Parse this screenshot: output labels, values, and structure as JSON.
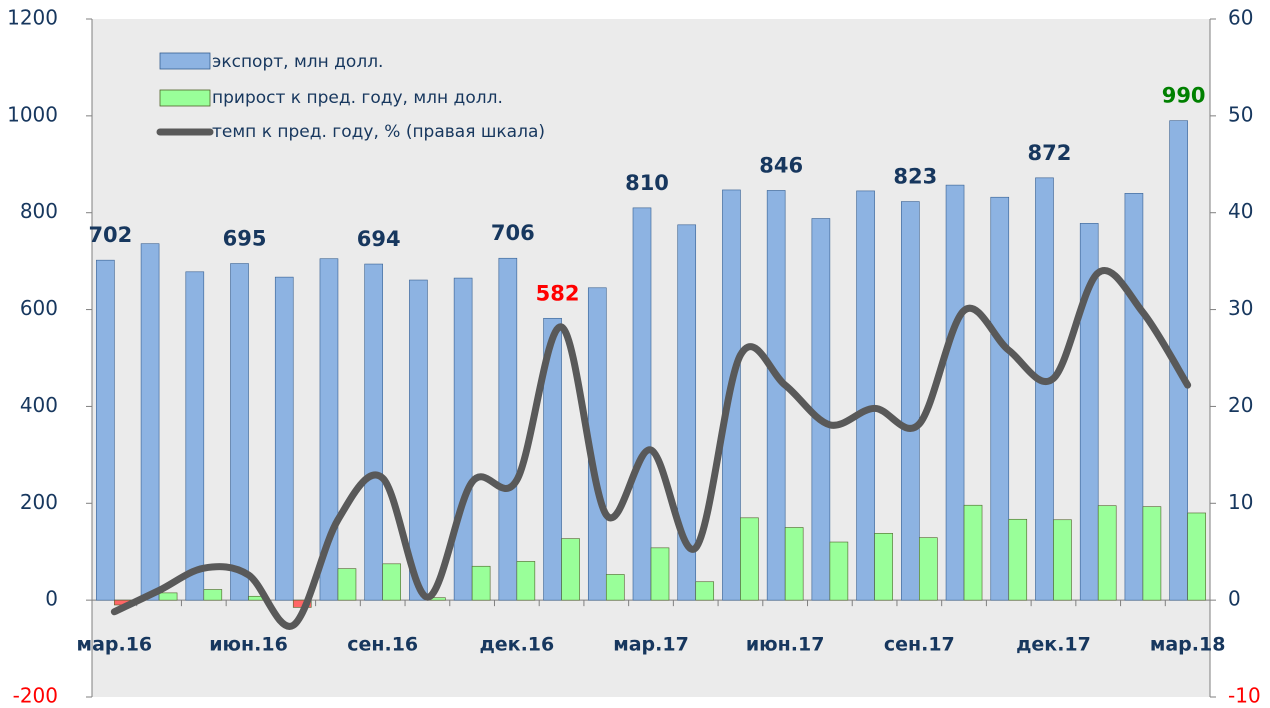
{
  "chart_data": {
    "type": "bar_line",
    "categories": [
      "мар.16",
      null,
      null,
      "июн.16",
      null,
      null,
      "сен.16",
      null,
      null,
      "дек.16",
      null,
      null,
      "мар.17",
      null,
      null,
      "июн.17",
      null,
      null,
      "сен.17",
      null,
      null,
      "дек.17",
      null,
      null,
      "мар.18"
    ],
    "series": [
      {
        "name": "экспорт, млн долл.",
        "color": "#8db3e2",
        "type": "bar",
        "values": [
          702,
          736,
          678,
          695,
          667,
          705,
          694,
          661,
          665,
          706,
          582,
          645,
          810,
          775,
          847,
          846,
          788,
          845,
          823,
          857,
          832,
          872,
          778,
          840,
          990
        ],
        "value_labels": [
          "702",
          null,
          null,
          "695",
          null,
          null,
          "694",
          null,
          null,
          "706",
          "582",
          null,
          "810",
          null,
          null,
          "846",
          null,
          null,
          "823",
          null,
          null,
          "872",
          null,
          null,
          "990"
        ],
        "value_label_colors": [
          "#17375e",
          null,
          null,
          "#17375e",
          null,
          null,
          "#17375e",
          null,
          null,
          "#17375e",
          "#ff0000",
          null,
          "#17375e",
          null,
          null,
          "#17375e",
          null,
          null,
          "#17375e",
          null,
          null,
          "#17375e",
          null,
          null,
          "#008000"
        ]
      },
      {
        "name": "прирост к пред. году, млн долл.",
        "color": "#99ff99",
        "negative_color": "#ff6666",
        "type": "bar",
        "values": [
          -10,
          15,
          22,
          8,
          -15,
          65,
          75,
          5,
          70,
          80,
          127,
          53,
          108,
          38,
          170,
          150,
          120,
          138,
          129,
          196,
          167,
          166,
          195,
          193,
          180
        ]
      },
      {
        "name": "темп к пред. году, % (правая шкала)",
        "color": "#595959",
        "type": "line",
        "axis": "y2",
        "values": [
          -1.2,
          1.0,
          3.3,
          2.6,
          -2.6,
          8.3,
          12.6,
          0.3,
          12.2,
          12.4,
          28.2,
          8.8,
          15.5,
          5.4,
          25.3,
          22.2,
          18.1,
          19.8,
          18.2,
          29.9,
          25.8,
          22.9,
          33.8,
          29.7,
          22.2
        ]
      }
    ],
    "ylim": [
      -200,
      1200
    ],
    "yticks": [
      -200,
      0,
      200,
      400,
      600,
      800,
      1000,
      1200
    ],
    "y2lim": [
      -10,
      60
    ],
    "y2ticks": [
      -10,
      0,
      10,
      20,
      30,
      40,
      50,
      60
    ],
    "legend": "upper left"
  }
}
